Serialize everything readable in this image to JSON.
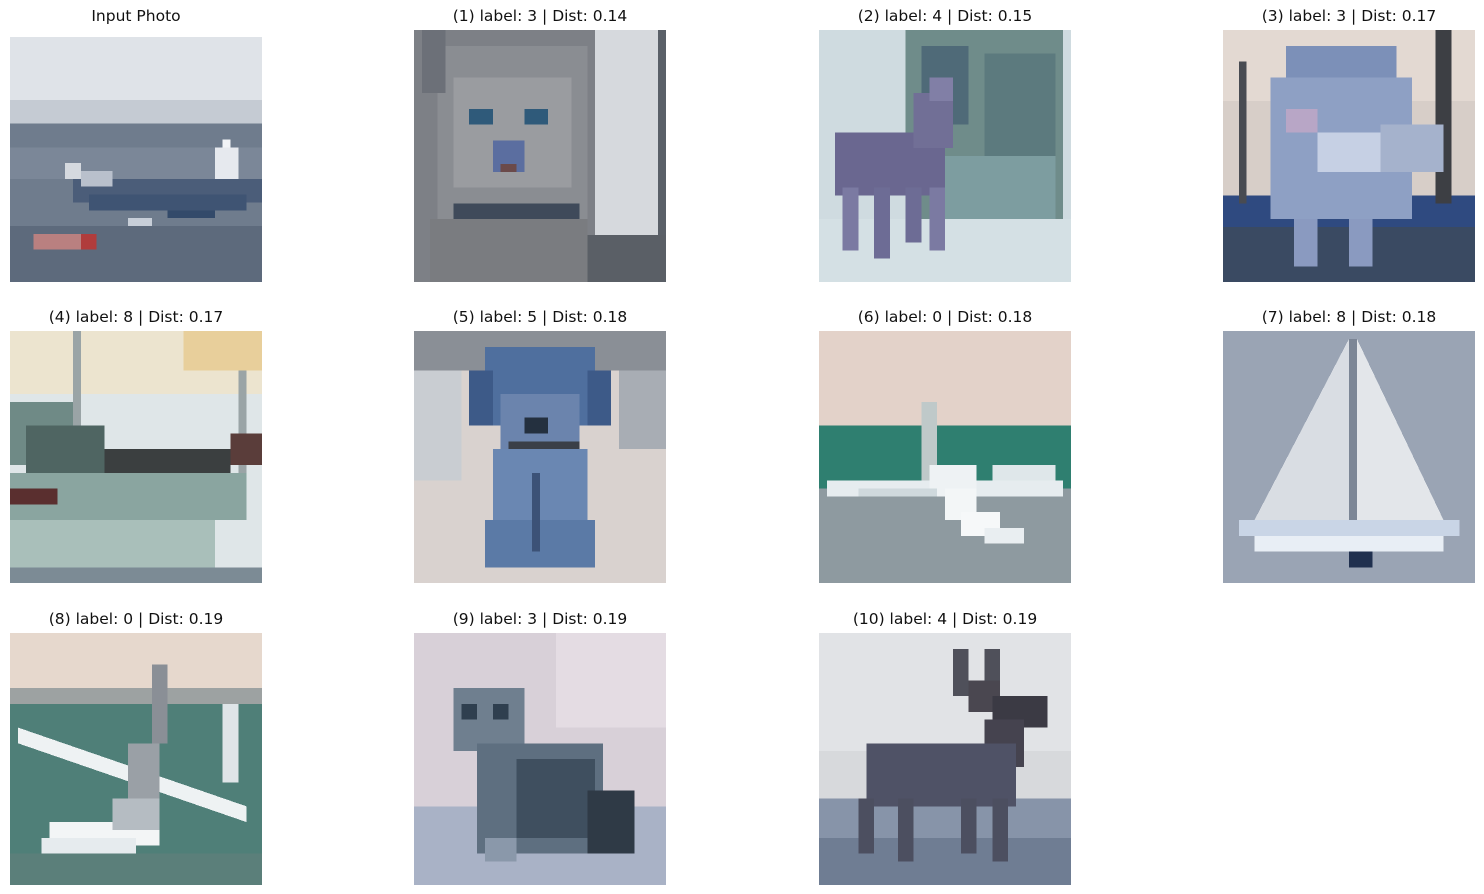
{
  "figure": {
    "input": {
      "title": "Input Photo",
      "subject": "ship"
    },
    "results": [
      {
        "caption": "(1) label: 3 | Dist: 0.14",
        "label": 3,
        "dist": 0.14,
        "subject": "cat"
      },
      {
        "caption": "(2) label: 4 | Dist: 0.15",
        "label": 4,
        "dist": 0.15,
        "subject": "deer"
      },
      {
        "caption": "(3) label: 3 | Dist: 0.17",
        "label": 3,
        "dist": 0.17,
        "subject": "cat"
      },
      {
        "caption": "(4) label: 8 | Dist: 0.17",
        "label": 8,
        "dist": 0.17,
        "subject": "ship"
      },
      {
        "caption": "(5) label: 5 | Dist: 0.18",
        "label": 5,
        "dist": 0.18,
        "subject": "dog"
      },
      {
        "caption": "(6) label: 0 | Dist: 0.18",
        "label": 0,
        "dist": 0.18,
        "subject": "airplane"
      },
      {
        "caption": "(7) label: 8 | Dist: 0.18",
        "label": 8,
        "dist": 0.18,
        "subject": "sailboat"
      },
      {
        "caption": "(8) label: 0 | Dist: 0.19",
        "label": 0,
        "dist": 0.19,
        "subject": "airplane"
      },
      {
        "caption": "(9) label: 3 | Dist: 0.19",
        "label": 3,
        "dist": 0.19,
        "subject": "cat"
      },
      {
        "caption": "(10) label: 4 | Dist: 0.19",
        "label": 4,
        "dist": 0.19,
        "subject": "deer"
      }
    ]
  }
}
